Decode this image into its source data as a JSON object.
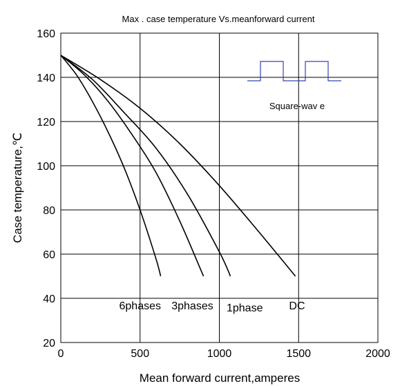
{
  "chart_data": {
    "type": "line",
    "title": "Max . case temperature Vs.meanforward current",
    "xlabel": "Mean forward current,amperes",
    "ylabel": "Case temperature,℃",
    "xlim": [
      0,
      2000
    ],
    "ylim": [
      20,
      160
    ],
    "xticks": [
      "0",
      "500",
      "1000",
      "1500",
      "2000"
    ],
    "yticks": [
      "20",
      "40",
      "60",
      "80",
      "100",
      "120",
      "140",
      "160"
    ],
    "grid": true,
    "series": [
      {
        "name": "6phases",
        "color": "#000000",
        "x": [
          0,
          100,
          200,
          300,
          400,
          500,
          600,
          630
        ],
        "y": [
          150,
          141,
          129,
          115,
          99,
          80,
          58,
          50
        ]
      },
      {
        "name": "3phases",
        "color": "#000000",
        "x": [
          0,
          150,
          300,
          450,
          600,
          750,
          900
        ],
        "y": [
          150,
          141,
          129,
          114,
          97,
          75,
          50
        ]
      },
      {
        "name": "1phase",
        "color": "#000000",
        "x": [
          0,
          200,
          400,
          600,
          800,
          1000,
          1070
        ],
        "y": [
          150,
          139,
          124,
          108,
          87,
          61,
          50
        ]
      },
      {
        "name": "DC",
        "color": "#000000",
        "x": [
          0,
          250,
          500,
          750,
          1000,
          1250,
          1480
        ],
        "y": [
          150,
          139,
          126,
          110,
          91,
          70,
          50
        ]
      }
    ],
    "annotations": {
      "inset_label": "Square-wav e",
      "inset_color": "#3344aa"
    },
    "series_labels": [
      {
        "text": "6phases",
        "x": 500,
        "y": 35
      },
      {
        "text": "3phases",
        "x": 830,
        "y": 35
      },
      {
        "text": "1phase",
        "x": 1160,
        "y": 34
      },
      {
        "text": "DC",
        "x": 1490,
        "y": 35
      }
    ]
  }
}
